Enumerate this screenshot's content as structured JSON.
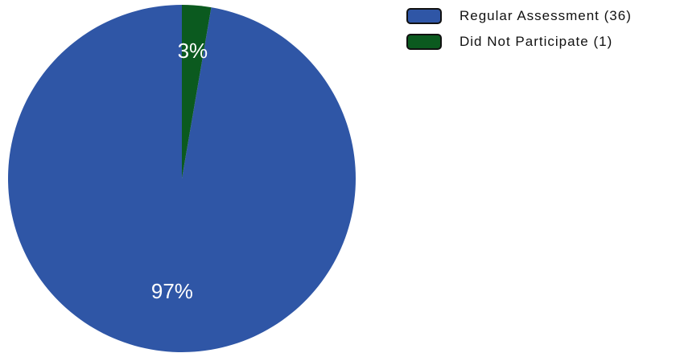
{
  "chart_data": {
    "type": "pie",
    "title": "",
    "slices": [
      {
        "label": "Regular Assessment (36)",
        "count": 36,
        "percent_label": "97%",
        "color": "#2f56a6"
      },
      {
        "label": "Did Not Participate (1)",
        "count": 1,
        "percent_label": "3%",
        "color": "#0b5a1f"
      }
    ],
    "legend_position": "top-right",
    "label_color": "#ffffff"
  }
}
